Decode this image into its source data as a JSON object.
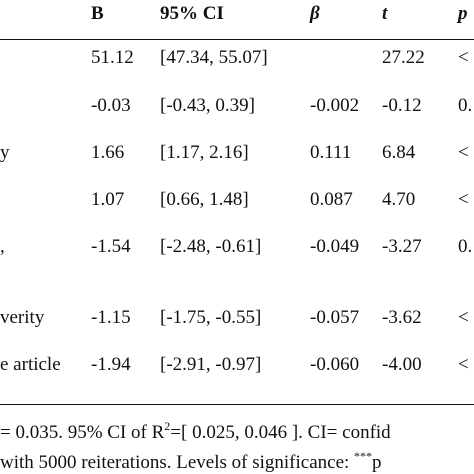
{
  "table": {
    "headers": {
      "b": "B",
      "ci": "95% CI",
      "beta": "β",
      "t": "t",
      "p": "p"
    },
    "rows": [
      {
        "label": "",
        "b": "51.12",
        "ci": "[47.34, 55.07]",
        "beta": "",
        "t": "27.22",
        "p": "<"
      },
      {
        "label": "",
        "b": "-0.03",
        "ci": "[-0.43, 0.39]",
        "beta": "-0.002",
        "t": "-0.12",
        "p": "0."
      },
      {
        "label": "y",
        "b": "1.66",
        "ci": "[1.17, 2.16]",
        "beta": "0.111",
        "t": "6.84",
        "p": "<"
      },
      {
        "label": "",
        "b": "1.07",
        "ci": "[0.66, 1.48]",
        "beta": "0.087",
        "t": "4.70",
        "p": "<"
      },
      {
        "label": ",",
        "b": "-1.54",
        "ci": "[-2.48, -0.61]",
        "beta": "-0.049",
        "t": "-3.27",
        "p": "0."
      },
      {
        "label": "verity",
        "b": "-1.15",
        "ci": "[-1.75, -0.55]",
        "beta": "-0.057",
        "t": "-3.62",
        "p": "<"
      },
      {
        "label": "e article",
        "b": "-1.94",
        "ci": "[-2.91, -0.97]",
        "beta": "-0.060",
        "t": "-4.00",
        "p": "<"
      }
    ]
  },
  "footnote": {
    "line1_a": "= 0.035. 95% CI of R",
    "line1_sup": "2",
    "line1_b": "=[ 0.025,  0.046 ]. CI= confid",
    "line2_a": " with 5000 reiterations. Levels of significance: ",
    "line2_sup": "***",
    "line2_b": "p"
  }
}
